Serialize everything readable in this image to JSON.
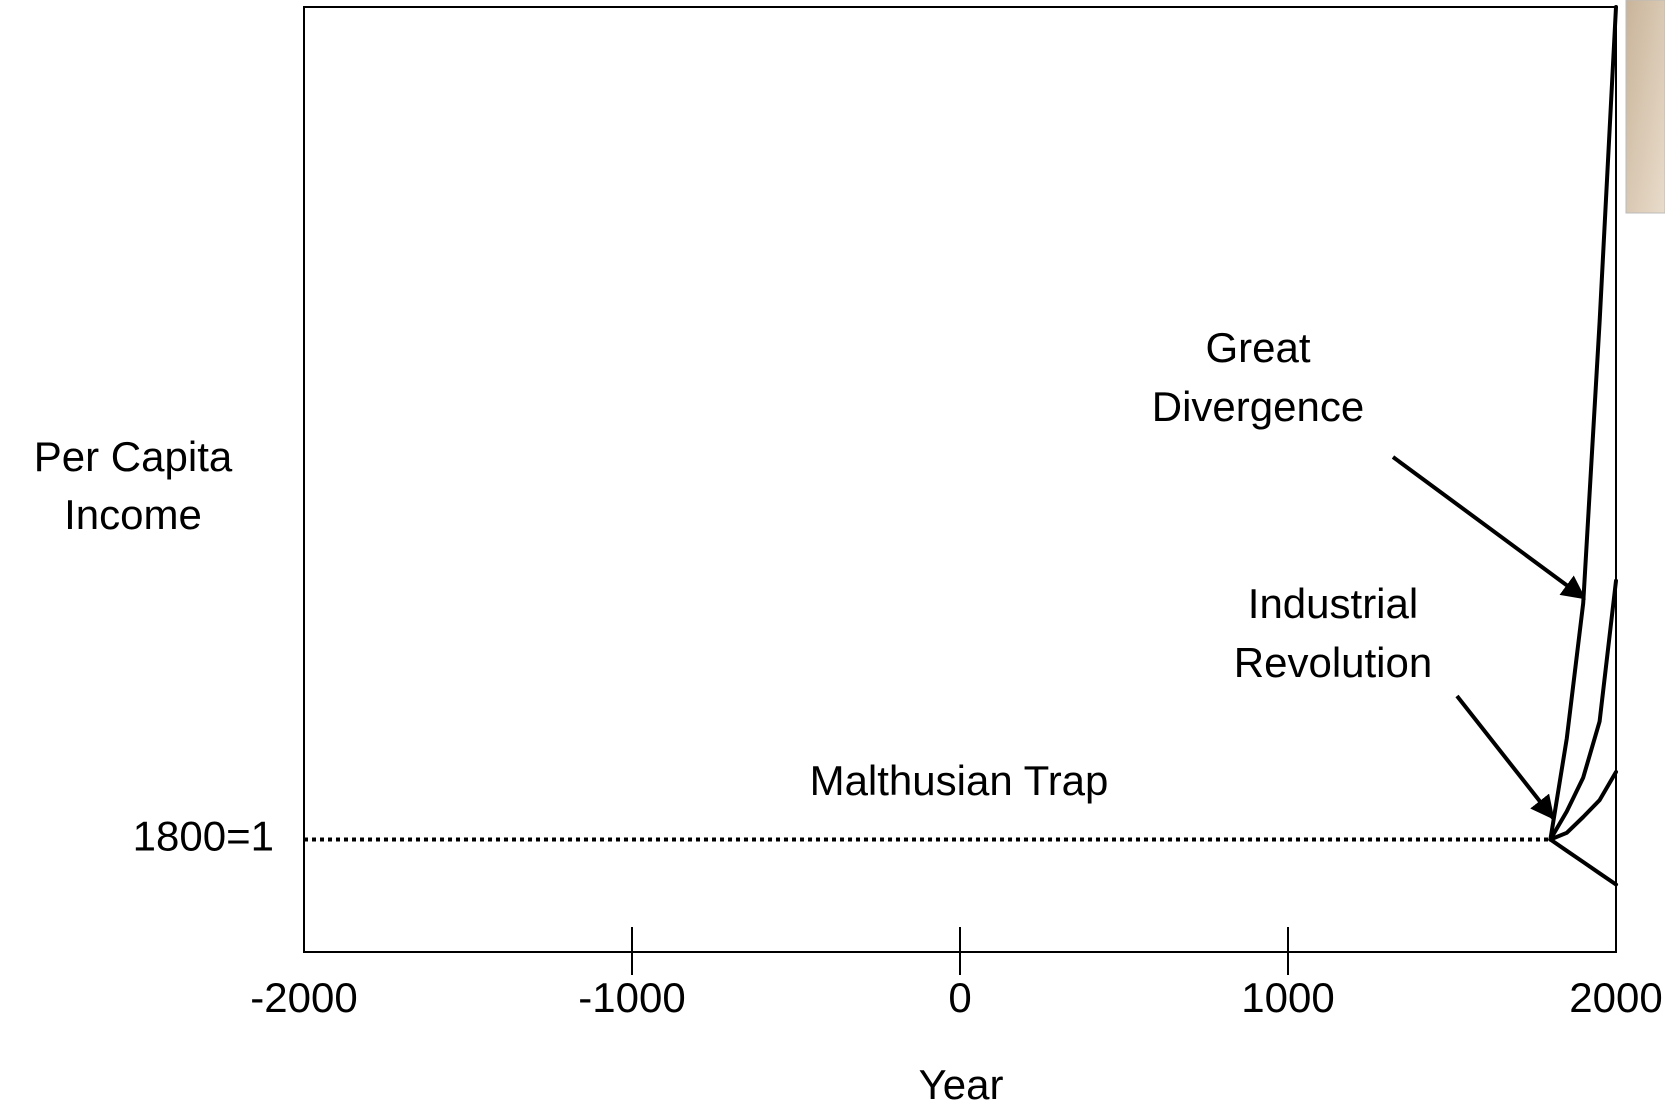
{
  "chart_data": {
    "type": "line",
    "xlabel": "Year",
    "ylabel": [
      "Per Capita",
      "Income"
    ],
    "xlim": [
      -2000,
      2000
    ],
    "xticks": [
      -2000,
      -1000,
      0,
      1000,
      2000
    ],
    "ylim": [
      0,
      8.4
    ],
    "yticks": [
      {
        "value": 1,
        "label": "1800=1"
      }
    ],
    "color": "#000000",
    "series": [
      {
        "x": [
          -2000,
          1800
        ],
        "values": [
          1,
          1
        ],
        "style": "dotted"
      },
      {
        "x": [
          1800,
          1850,
          1900,
          1950,
          2000
        ],
        "values": [
          1,
          1.9,
          3.1,
          5.6,
          8.4
        ],
        "style": "solid"
      },
      {
        "x": [
          1800,
          1850,
          1900,
          1950,
          2000
        ],
        "values": [
          1,
          1.25,
          1.55,
          2.05,
          3.3
        ],
        "style": "solid"
      },
      {
        "x": [
          1800,
          1850,
          1900,
          1950,
          2000
        ],
        "values": [
          1,
          1.06,
          1.2,
          1.35,
          1.6
        ],
        "style": "solid"
      },
      {
        "x": [
          1800,
          1850,
          1900,
          1950,
          2000
        ],
        "values": [
          1,
          0.9,
          0.8,
          0.7,
          0.6
        ],
        "style": "solid"
      }
    ],
    "annotations": [
      {
        "text": [
          "Great",
          "Divergence"
        ]
      },
      {
        "text": [
          "Industrial",
          "Revolution"
        ]
      },
      {
        "text": [
          "Malthusian Trap"
        ]
      }
    ]
  }
}
